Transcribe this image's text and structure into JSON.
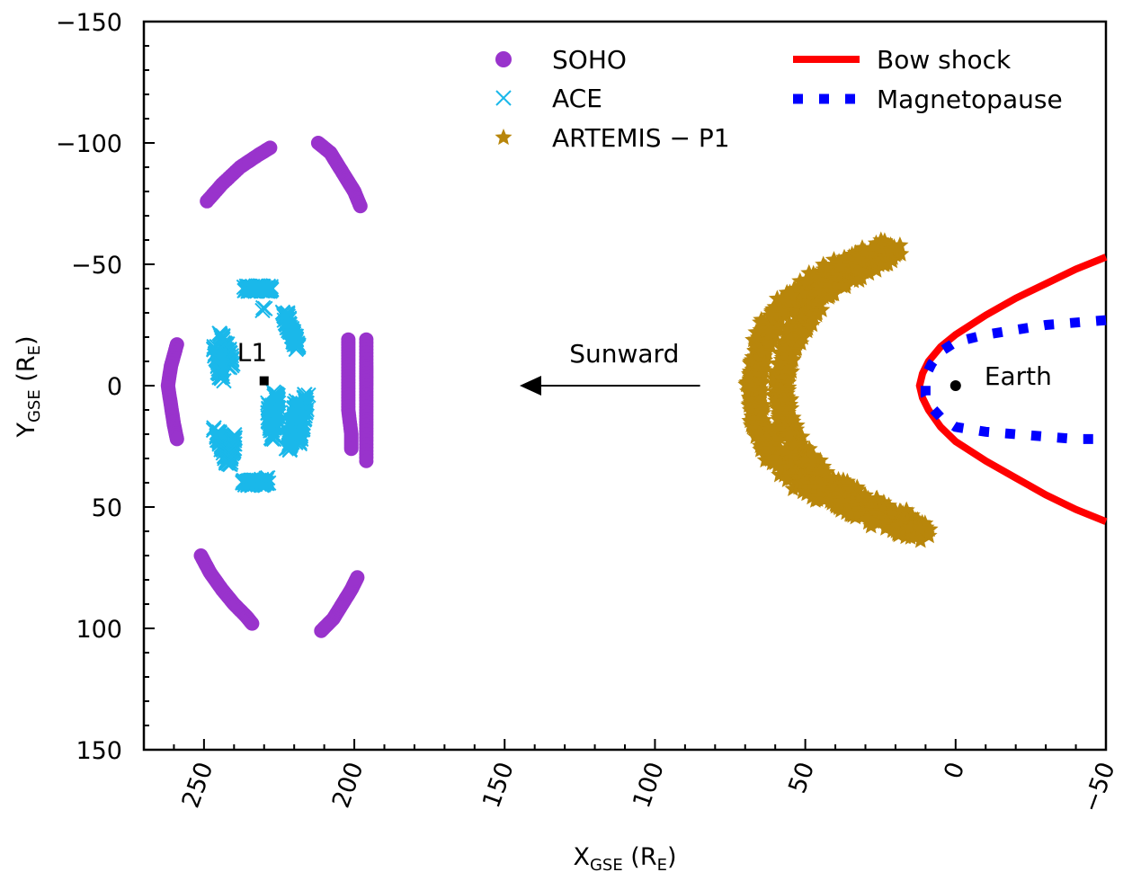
{
  "chart_data": {
    "type": "scatter",
    "xlabel": {
      "main": "X",
      "sub": "GSE",
      "unit_open": " (R",
      "unit_sub": "E",
      "unit_close": ")"
    },
    "ylabel": {
      "main": "Y",
      "sub": "GSE",
      "unit_open": " (R",
      "unit_sub": "E",
      "unit_close": ")"
    },
    "x_axis": {
      "reversed": true,
      "xlim": [
        270,
        -50
      ],
      "ticks": [
        250,
        200,
        150,
        100,
        50,
        0,
        -50
      ],
      "tick_labels": [
        "250",
        "200",
        "150",
        "100",
        "50",
        "0",
        "−50"
      ],
      "minor_step": 10
    },
    "y_axis": {
      "reversed": true,
      "ylim": [
        -150,
        150
      ],
      "ticks": [
        -150,
        -100,
        -50,
        0,
        50,
        100,
        150
      ],
      "tick_labels": [
        "−150",
        "−100",
        "−50",
        "0",
        "50",
        "100",
        "150"
      ],
      "minor_step": 10
    },
    "grid": false,
    "legend_placement": "top-right (two columns)",
    "series": [
      {
        "name": "SOHO",
        "marker": "circle",
        "color": "#9933cc",
        "segments": [
          [
            [
              259,
              -17
            ],
            [
              261,
              -8
            ],
            [
              262,
              0
            ],
            [
              261,
              8
            ],
            [
              260,
              16
            ],
            [
              259,
              22
            ]
          ],
          [
            [
              249,
              -76
            ],
            [
              244,
              -83
            ],
            [
              238,
              -90
            ],
            [
              232,
              -95
            ],
            [
              228,
              -98
            ]
          ],
          [
            [
              212,
              -100
            ],
            [
              208,
              -96
            ],
            [
              205,
              -90
            ],
            [
              202,
              -84
            ],
            [
              200,
              -80
            ],
            [
              198,
              -74
            ]
          ],
          [
            [
              202,
              -19
            ],
            [
              202,
              -10
            ],
            [
              202,
              0
            ],
            [
              202,
              10
            ],
            [
              201,
              20
            ],
            [
              201,
              26
            ]
          ],
          [
            [
              196,
              -19
            ],
            [
              196,
              -8
            ],
            [
              196,
              0
            ],
            [
              196,
              10
            ],
            [
              196,
              20
            ],
            [
              196,
              31
            ]
          ],
          [
            [
              251,
              70
            ],
            [
              248,
              77
            ],
            [
              244,
              84
            ],
            [
              240,
              90
            ],
            [
              236,
              95
            ],
            [
              234,
              98
            ]
          ],
          [
            [
              211,
              101
            ],
            [
              207,
              96
            ],
            [
              204,
              90
            ],
            [
              201,
              84
            ],
            [
              199,
              79
            ]
          ]
        ]
      },
      {
        "name": "ACE",
        "marker": "x",
        "color": "#1ab8ea",
        "segments": [
          [
            [
              236,
              -40
            ],
            [
              234,
              -40
            ],
            [
              232,
              -40
            ],
            [
              230,
              -40
            ],
            [
              228,
              -40
            ]
          ],
          [
            [
              230,
              -31
            ]
          ],
          [
            [
              223,
              -30
            ],
            [
              222,
              -25
            ],
            [
              220,
              -20
            ],
            [
              219,
              -16
            ]
          ],
          [
            [
              244,
              -21
            ],
            [
              242,
              -14
            ],
            [
              241,
              -8
            ]
          ],
          [
            [
              246,
              -15
            ],
            [
              245,
              -8
            ],
            [
              244,
              -3
            ]
          ],
          [
            [
              228,
              8
            ],
            [
              228,
              14
            ],
            [
              227,
              21
            ]
          ],
          [
            [
              226,
              3
            ],
            [
              226,
              10
            ],
            [
              226,
              17
            ]
          ],
          [
            [
              216,
              4
            ],
            [
              217,
              12
            ],
            [
              218,
              18
            ],
            [
              219,
              24
            ]
          ],
          [
            [
              219,
              7
            ],
            [
              220,
              14
            ],
            [
              221,
              20
            ],
            [
              222,
              26
            ]
          ],
          [
            [
              246,
              18
            ],
            [
              244,
              24
            ],
            [
              242,
              30
            ]
          ],
          [
            [
              240,
              21
            ],
            [
              241,
              28
            ],
            [
              242,
              32
            ]
          ],
          [
            [
              237,
              40
            ],
            [
              235,
              40
            ],
            [
              233,
              40
            ],
            [
              231,
              40
            ],
            [
              229,
              39
            ]
          ]
        ]
      },
      {
        "name": "ARTEMIS − P1",
        "marker": "star",
        "color": "#b8860b",
        "segments": [
          [
            [
              20,
              -55
            ],
            [
              26,
              -52
            ],
            [
              33,
              -47
            ],
            [
              39,
              -43
            ],
            [
              44,
              -38
            ],
            [
              48,
              -32
            ],
            [
              51,
              -26
            ],
            [
              54,
              -20
            ],
            [
              56,
              -14
            ],
            [
              57,
              -8
            ],
            [
              58,
              -2
            ],
            [
              58,
              4
            ],
            [
              57,
              10
            ],
            [
              56,
              16
            ],
            [
              54,
              22
            ],
            [
              51,
              28
            ],
            [
              48,
              33
            ],
            [
              44,
              38
            ],
            [
              39,
              42
            ],
            [
              33,
              46
            ],
            [
              27,
              50
            ],
            [
              21,
              53
            ],
            [
              15,
              57
            ],
            [
              10,
              60
            ]
          ],
          [
            [
              25,
              -57
            ],
            [
              32,
              -52
            ],
            [
              40,
              -48
            ],
            [
              47,
              -43
            ],
            [
              53,
              -37
            ],
            [
              58,
              -31
            ],
            [
              62,
              -24
            ],
            [
              65,
              -17
            ],
            [
              66,
              -10
            ],
            [
              67,
              -3
            ],
            [
              67,
              3
            ],
            [
              66,
              10
            ],
            [
              65,
              16
            ],
            [
              63,
              23
            ],
            [
              60,
              29
            ],
            [
              56,
              35
            ],
            [
              51,
              40
            ],
            [
              45,
              44
            ],
            [
              38,
              48
            ],
            [
              32,
              52
            ],
            [
              25,
              55
            ],
            [
              18,
              58
            ],
            [
              13,
              61
            ]
          ]
        ]
      }
    ],
    "curves": [
      {
        "name": "Bow shock",
        "style": "solid",
        "color": "#ff0000",
        "points": [
          [
            -50,
            -53
          ],
          [
            -40,
            -48
          ],
          [
            -30,
            -42
          ],
          [
            -20,
            -36
          ],
          [
            -10,
            -29
          ],
          [
            0,
            -21
          ],
          [
            5,
            -16
          ],
          [
            9,
            -10
          ],
          [
            11,
            -5
          ],
          [
            12,
            0
          ],
          [
            11,
            5
          ],
          [
            9,
            10
          ],
          [
            5,
            17
          ],
          [
            0,
            23
          ],
          [
            -10,
            31
          ],
          [
            -20,
            38
          ],
          [
            -30,
            45
          ],
          [
            -40,
            51
          ],
          [
            -50,
            56
          ]
        ]
      },
      {
        "name": "Magnetopause",
        "style": "dotted",
        "color": "#0000ff",
        "points": [
          [
            -50,
            -27
          ],
          [
            -40,
            -26
          ],
          [
            -30,
            -25
          ],
          [
            -20,
            -23
          ],
          [
            -10,
            -21
          ],
          [
            0,
            -18
          ],
          [
            5,
            -14
          ],
          [
            8,
            -9
          ],
          [
            10,
            -4
          ],
          [
            10,
            0
          ],
          [
            10,
            4
          ],
          [
            8,
            9
          ],
          [
            5,
            13
          ],
          [
            0,
            17
          ],
          [
            -10,
            19
          ],
          [
            -20,
            20
          ],
          [
            -30,
            21
          ],
          [
            -40,
            22
          ],
          [
            -50,
            22
          ]
        ]
      }
    ],
    "points": [
      {
        "label": "L1",
        "x": 230,
        "y": -2,
        "marker": "square",
        "color": "#000000"
      },
      {
        "label": "Earth",
        "x": 0,
        "y": 0,
        "marker": "circle",
        "color": "#000000"
      }
    ],
    "annotations": [
      {
        "text": "Sunward",
        "arrow": {
          "from": [
            85,
            0
          ],
          "to": [
            145,
            0
          ]
        }
      }
    ]
  }
}
